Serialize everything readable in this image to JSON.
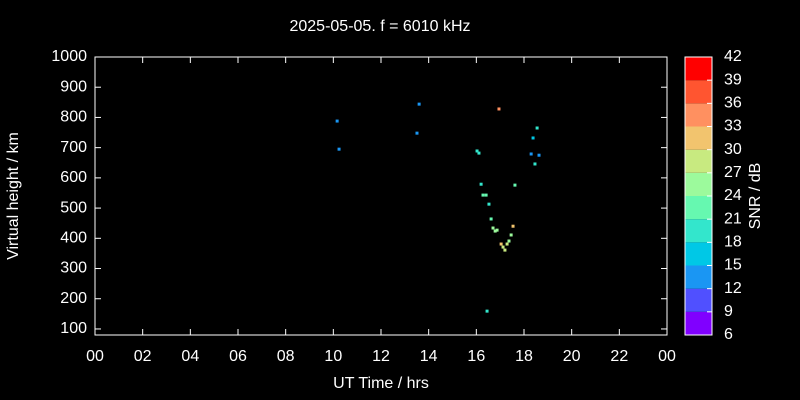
{
  "chart_data": {
    "type": "scatter",
    "title": "2025-05-05. f = 6010 kHz",
    "xlabel": "UT Time / hrs",
    "ylabel": "Virtual height / km",
    "colorbar_label": "SNR / dB",
    "x": [
      10.16,
      10.24,
      13.6,
      13.51,
      16.95,
      16.03,
      16.11,
      16.2,
      16.28,
      16.41,
      16.53,
      16.62,
      16.7,
      16.79,
      16.87,
      17.04,
      17.12,
      17.2,
      17.29,
      17.37,
      17.46,
      17.54,
      17.62,
      16.45,
      18.3,
      18.38,
      18.46,
      18.55,
      18.63
    ],
    "y": [
      788,
      695,
      844,
      748,
      828,
      689,
      682,
      579,
      543,
      543,
      513,
      464,
      434,
      424,
      427,
      381,
      371,
      361,
      381,
      391,
      411,
      440,
      576,
      159,
      679,
      732,
      646,
      765,
      675
    ],
    "snr": [
      12,
      12,
      12,
      12,
      34,
      18,
      18,
      19,
      22,
      22,
      20,
      22,
      24,
      24,
      24,
      31,
      28,
      28,
      28,
      26,
      25,
      32,
      22,
      20,
      14,
      15,
      18,
      20,
      13
    ],
    "xlim": [
      0,
      24
    ],
    "xticks": [
      {
        "value": 0,
        "label": "00"
      },
      {
        "value": 2,
        "label": "02"
      },
      {
        "value": 4,
        "label": "04"
      },
      {
        "value": 6,
        "label": "06"
      },
      {
        "value": 8,
        "label": "08"
      },
      10,
      12,
      14,
      16,
      18,
      20,
      22,
      {
        "value": 24,
        "label": "00"
      }
    ],
    "ylim": [
      80,
      1000
    ],
    "yticks": [
      100,
      200,
      300,
      400,
      500,
      600,
      700,
      800,
      900,
      1000
    ],
    "clim": [
      6,
      42
    ],
    "cticks": [
      6,
      9,
      12,
      15,
      18,
      21,
      24,
      27,
      30,
      33,
      36,
      39,
      42
    ],
    "colormap": [
      "#8000ff",
      "#5050ff",
      "#1a96f3",
      "#00c8e6",
      "#33e6cc",
      "#66f8b0",
      "#9cfa9c",
      "#c8ea80",
      "#f2c46e",
      "#ff9060",
      "#ff5530",
      "#ff0000"
    ]
  }
}
